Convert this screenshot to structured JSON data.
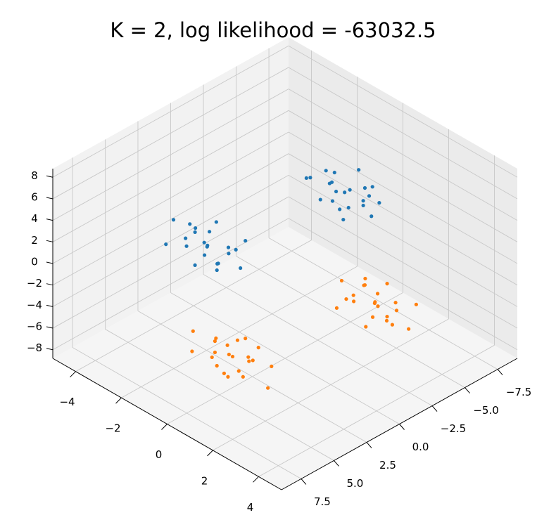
{
  "chart_data": {
    "type": "scatter3d",
    "title": "K = 2, log likelihood = -63032.5",
    "xlim": [
      -9,
      9
    ],
    "ylim": [
      -5,
      5
    ],
    "zlim": [
      -8.8,
      8.8
    ],
    "xticks": [
      {
        "value": -7.5,
        "label": "−7.5"
      },
      {
        "value": -5,
        "label": "−5.0"
      },
      {
        "value": -2.5,
        "label": "−2.5"
      },
      {
        "value": 0,
        "label": "0.0"
      },
      {
        "value": 2.5,
        "label": "2.5"
      },
      {
        "value": 5,
        "label": "5.0"
      },
      {
        "value": 7.5,
        "label": "7.5"
      }
    ],
    "yticks": [
      {
        "value": -4,
        "label": "−4"
      },
      {
        "value": -2,
        "label": "−2"
      },
      {
        "value": 0,
        "label": "0"
      },
      {
        "value": 2,
        "label": "2"
      },
      {
        "value": 4,
        "label": "4"
      }
    ],
    "zticks": [
      {
        "value": -8,
        "label": "−8"
      },
      {
        "value": -6,
        "label": "−6"
      },
      {
        "value": -4,
        "label": "−4"
      },
      {
        "value": -2,
        "label": "−2"
      },
      {
        "value": 0,
        "label": "0"
      },
      {
        "value": 2,
        "label": "2"
      },
      {
        "value": 4,
        "label": "4"
      },
      {
        "value": 6,
        "label": "6"
      },
      {
        "value": 8,
        "label": "8"
      }
    ],
    "grid": true,
    "series": [
      {
        "color": "#1f77b4",
        "x": [
          4.7,
          5.5,
          3.8,
          5.0,
          4.3,
          6.0,
          3.5,
          5.2,
          4.1,
          4.9,
          5.7,
          3.7,
          5.3,
          4.4,
          6.3,
          3.2,
          4.8,
          4.5,
          5.6,
          3.9,
          5.1,
          4.2,
          -4.2,
          -4.7,
          -3.8,
          -3.1,
          -5.2,
          -4.0,
          -4.5,
          -3.5,
          -3.3,
          -5.0,
          -3.2,
          -5.3,
          -4.4,
          -3.9,
          -5.1,
          -3.4,
          -2.7,
          -5.8,
          -3.7,
          -4.8,
          -4.1,
          -4.4
        ],
        "y": [
          -0.7,
          -1.2,
          -0.3,
          0.4,
          -1.7,
          -0.5,
          -1.0,
          0.0,
          0.2,
          -1.5,
          0.3,
          -1.8,
          -0.9,
          -0.4,
          -1.6,
          0.1,
          0.8,
          -2.3,
          -0.2,
          -1.3,
          -0.6,
          -0.9,
          0.2,
          0.8,
          -0.1,
          1.0,
          0.7,
          -0.5,
          1.2,
          -0.9,
          0.5,
          -0.7,
          0.4,
          -0.2,
          1.6,
          -1.3,
          0.3,
          0.6,
          0.0,
          0.5,
          1.3,
          -0.8,
          -0.3,
          0.9
        ],
        "z": [
          4.0,
          4.6,
          3.7,
          4.8,
          4.5,
          3.3,
          5.0,
          2.9,
          4.3,
          3.1,
          4.2,
          3.6,
          5.4,
          2.5,
          4.1,
          4.4,
          3.8,
          4.3,
          5.1,
          3.0,
          3.5,
          4.7,
          4.0,
          4.8,
          3.1,
          4.3,
          3.6,
          5.3,
          2.8,
          4.5,
          3.4,
          4.2,
          5.0,
          3.0,
          4.6,
          3.7,
          5.6,
          2.5,
          4.1,
          3.8,
          4.9,
          3.2,
          4.4,
          3.5
        ]
      },
      {
        "color": "#ff7f0e",
        "x": [
          5.4,
          6.0,
          5.1,
          6.2,
          5.9,
          4.7,
          6.4,
          4.3,
          5.7,
          4.5,
          5.6,
          5.0,
          6.8,
          3.9,
          5.5,
          5.8,
          5.2,
          5.7,
          6.5,
          4.4,
          4.9,
          6.1,
          -3.7,
          -4.5,
          -2.8,
          -4.0,
          -3.3,
          -5.0,
          -2.5,
          -4.2,
          -3.1,
          -3.9,
          -4.7,
          -2.7,
          -4.3,
          -3.4,
          -5.3,
          -2.2,
          -3.8,
          -3.5,
          -4.6,
          -2.9,
          -4.1,
          -3.2
        ],
        "y": [
          0.8,
          1.6,
          -0.1,
          1.1,
          0.4,
          2.1,
          -0.4,
          1.3,
          0.2,
          1.0,
          1.8,
          -0.2,
          1.4,
          0.5,
          2.4,
          -0.7,
          0.9,
          0.6,
          1.7,
          0.0,
          1.2,
          0.3,
          1.8,
          2.3,
          1.4,
          0.7,
          2.8,
          1.6,
          2.1,
          1.1,
          0.9,
          2.6,
          0.8,
          2.9,
          2.0,
          1.5,
          2.7,
          1.0,
          0.3,
          3.4,
          1.3,
          2.4,
          1.7,
          2.0
        ],
        "z": [
          -4.0,
          -4.5,
          -3.6,
          -2.9,
          -5.0,
          -3.8,
          -4.3,
          -3.3,
          -3.1,
          -4.8,
          -3.0,
          -5.1,
          -4.2,
          -3.7,
          -4.9,
          -3.2,
          -2.5,
          -5.6,
          -3.5,
          -4.6,
          -3.9,
          -4.2,
          -4.0,
          -4.6,
          -3.7,
          -4.8,
          -4.5,
          -3.3,
          -5.0,
          -2.9,
          -4.3,
          -3.1,
          -4.2,
          -3.6,
          -5.4,
          -2.5,
          -4.1,
          -4.4,
          -3.8,
          -4.3,
          -5.1,
          -3.0,
          -3.5,
          -4.7
        ]
      }
    ]
  }
}
